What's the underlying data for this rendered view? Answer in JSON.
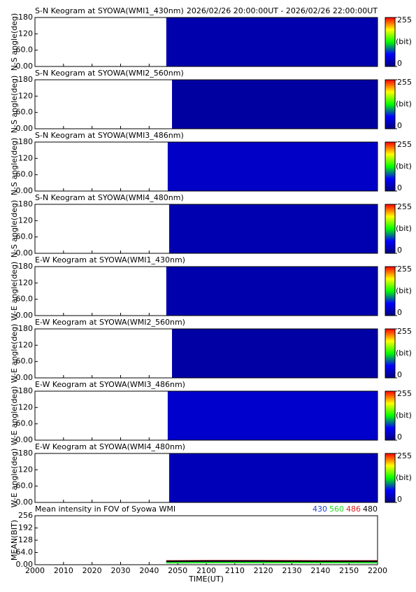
{
  "chart_data": [
    {
      "type": "keogram",
      "title": "S-N Keogram at SYOWA(WMI1_430nm)",
      "subtitle": "2026/02/26 20:00:00UT - 2026/02/26 22:00:00UT",
      "ylabel": "N-S angle(deg)",
      "ylim": [
        0,
        180
      ],
      "yticks": [
        {
          "value": 0,
          "label": "0.00"
        },
        {
          "value": 60,
          "label": "60.0"
        },
        120,
        180
      ],
      "colorbar": {
        "lim": [
          0,
          255
        ],
        "ticks": [
          0,
          255
        ],
        "label": "(bit)"
      },
      "image": {
        "x": [
          46,
          120
        ],
        "value": 22
      }
    },
    {
      "type": "keogram",
      "title": "S-N Keogram at SYOWA(WMI2_560nm)",
      "ylabel": "N-S angle(deg)",
      "ylim": [
        0,
        180
      ],
      "yticks": [
        {
          "value": 0,
          "label": "0.00"
        },
        {
          "value": 60,
          "label": "60.0"
        },
        120,
        180
      ],
      "colorbar": {
        "lim": [
          0,
          255
        ],
        "ticks": [
          0,
          255
        ],
        "label": "(bit)"
      },
      "image": {
        "x": [
          48,
          120
        ],
        "value": 16
      }
    },
    {
      "type": "keogram",
      "title": "S-N Keogram at SYOWA(WMI3_486nm)",
      "ylabel": "N-S angle(deg)",
      "ylim": [
        0,
        180
      ],
      "yticks": [
        {
          "value": 0,
          "label": "0.00"
        },
        {
          "value": 60,
          "label": "60.0"
        },
        120,
        180
      ],
      "colorbar": {
        "lim": [
          0,
          255
        ],
        "ticks": [
          0,
          255
        ],
        "label": "(bit)"
      },
      "image": {
        "x": [
          46.5,
          120
        ],
        "value": 35
      }
    },
    {
      "type": "keogram",
      "title": "S-N Keogram at SYOWA(WMI4_480nm)",
      "ylabel": "N-S angle(deg)",
      "ylim": [
        0,
        180
      ],
      "yticks": [
        {
          "value": 0,
          "label": "0.00"
        },
        {
          "value": 60,
          "label": "60.0"
        },
        120,
        180
      ],
      "colorbar": {
        "lim": [
          0,
          255
        ],
        "ticks": [
          0,
          255
        ],
        "label": "(bit)"
      },
      "image": {
        "x": [
          47,
          120
        ],
        "value": 24
      }
    },
    {
      "type": "keogram",
      "title": "E-W Keogram at SYOWA(WMI1_430nm)",
      "ylabel": "W-E angle(deg)",
      "ylim": [
        0,
        180
      ],
      "yticks": [
        {
          "value": 0,
          "label": "0.00"
        },
        {
          "value": 60,
          "label": "60.0"
        },
        120,
        180
      ],
      "colorbar": {
        "lim": [
          0,
          255
        ],
        "ticks": [
          0,
          255
        ],
        "label": "(bit)"
      },
      "image": {
        "x": [
          46,
          120
        ],
        "value": 22
      }
    },
    {
      "type": "keogram",
      "title": "E-W Keogram at SYOWA(WMI2_560nm)",
      "ylabel": "W-E angle(deg)",
      "ylim": [
        0,
        180
      ],
      "yticks": [
        {
          "value": 0,
          "label": "0.00"
        },
        {
          "value": 60,
          "label": "60.0"
        },
        120,
        180
      ],
      "colorbar": {
        "lim": [
          0,
          255
        ],
        "ticks": [
          0,
          255
        ],
        "label": "(bit)"
      },
      "image": {
        "x": [
          48,
          120
        ],
        "value": 18
      }
    },
    {
      "type": "keogram",
      "title": "E-W Keogram at SYOWA(WMI3_486nm)",
      "ylabel": "W-E angle(deg)",
      "ylim": [
        0,
        180
      ],
      "yticks": [
        {
          "value": 0,
          "label": "0.00"
        },
        {
          "value": 60,
          "label": "60.0"
        },
        120,
        180
      ],
      "colorbar": {
        "lim": [
          0,
          255
        ],
        "ticks": [
          0,
          255
        ],
        "label": "(bit)"
      },
      "image": {
        "x": [
          46.5,
          120
        ],
        "value": 38
      }
    },
    {
      "type": "keogram",
      "title": "E-W Keogram at SYOWA(WMI4_480nm)",
      "ylabel": "W-E angle(deg)",
      "ylim": [
        0,
        180
      ],
      "yticks": [
        {
          "value": 0,
          "label": "0.00"
        },
        {
          "value": 60,
          "label": "60.0"
        },
        120,
        180
      ],
      "colorbar": {
        "lim": [
          0,
          255
        ],
        "ticks": [
          0,
          255
        ],
        "label": "(bit)"
      },
      "image": {
        "x": [
          47,
          120
        ],
        "value": 28
      }
    },
    {
      "type": "line",
      "title": "Mean intensity in FOV of Syowa WMI",
      "ylabel": "MEAN(BIT)",
      "xlabel": "TIME(UT)",
      "ylim": [
        0,
        256
      ],
      "yticks": [
        {
          "value": 0,
          "label": "0.00"
        },
        {
          "value": 64,
          "label": "64.0"
        },
        128,
        192,
        256
      ],
      "xlim": [
        0,
        120
      ],
      "xticks": [
        {
          "value": 0,
          "label": "2000"
        },
        {
          "value": 10,
          "label": "2010"
        },
        {
          "value": 20,
          "label": "2020"
        },
        {
          "value": 30,
          "label": "2030"
        },
        {
          "value": 40,
          "label": "2040"
        },
        {
          "value": 50,
          "label": "2050"
        },
        {
          "value": 60,
          "label": "2100"
        },
        {
          "value": 70,
          "label": "2110"
        },
        {
          "value": 80,
          "label": "2120"
        },
        {
          "value": 90,
          "label": "2130"
        },
        {
          "value": 100,
          "label": "2140"
        },
        {
          "value": 110,
          "label": "2150"
        },
        {
          "value": 120,
          "label": "2200"
        }
      ],
      "x": [
        46,
        60,
        80,
        100,
        120
      ],
      "series": [
        {
          "name": "430",
          "color": "#1f3fd0",
          "values": [
            17,
            18,
            18,
            17,
            17
          ]
        },
        {
          "name": "560",
          "color": "#22dd22",
          "values": [
            10,
            11,
            11,
            11,
            10
          ]
        },
        {
          "name": "486",
          "color": "#dd2222",
          "values": [
            20,
            21,
            21,
            20,
            20
          ]
        },
        {
          "name": "480",
          "color": "#000000",
          "values": [
            18,
            19,
            19,
            18,
            18
          ]
        }
      ]
    }
  ]
}
